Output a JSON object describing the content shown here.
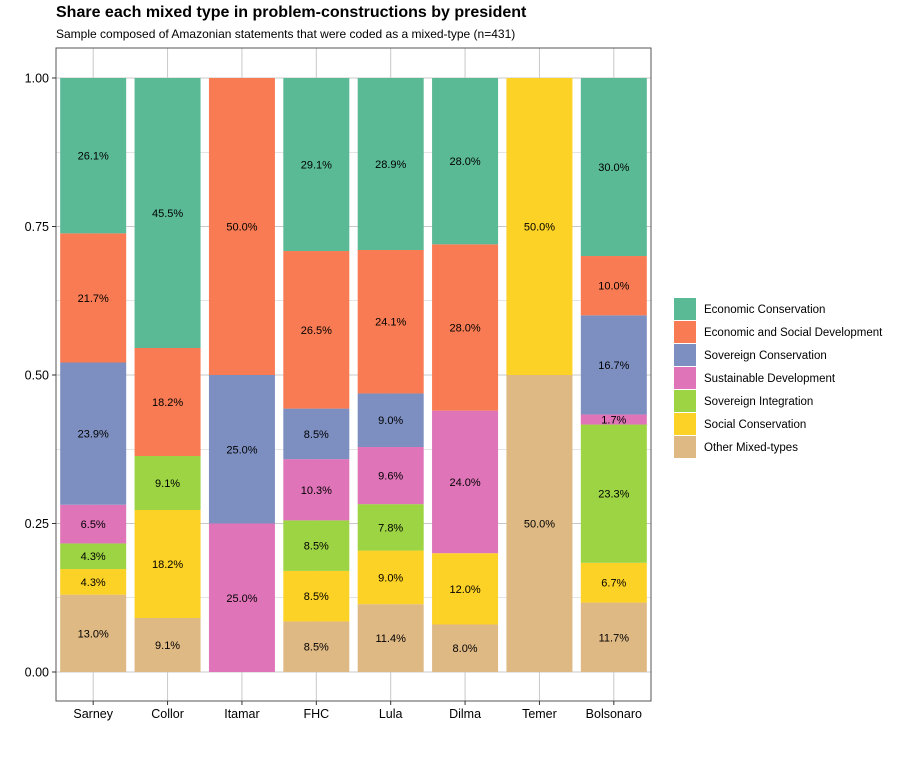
{
  "chart_data": {
    "type": "bar",
    "stacked": true,
    "title": "Share each mixed type in problem-constructions by president",
    "subtitle": "Sample composed of Amazonian statements that were coded as a mixed-type (n=431)",
    "xlabel": "",
    "ylabel": "",
    "ylim": [
      0,
      1
    ],
    "yticks": [
      "0.00",
      "0.25",
      "0.50",
      "0.75",
      "1.00"
    ],
    "grid": true,
    "legend_position": "right",
    "categories": [
      "Sarney",
      "Collor",
      "Itamar",
      "FHC",
      "Lula",
      "Dilma",
      "Temer",
      "Bolsonaro"
    ],
    "series": [
      {
        "name": "Economic Conservation",
        "color": "#5ABA96",
        "values": [
          0.261,
          0.455,
          0,
          0.291,
          0.289,
          0.28,
          0,
          0.3
        ],
        "labels": [
          "26.1%",
          "45.5%",
          "",
          "29.1%",
          "28.9%",
          "28.0%",
          "",
          "30.0%"
        ]
      },
      {
        "name": "Economic and Social Development",
        "color": "#F97B53",
        "values": [
          0.217,
          0.182,
          0.5,
          0.265,
          0.241,
          0.28,
          0,
          0.1
        ],
        "labels": [
          "21.7%",
          "18.2%",
          "50.0%",
          "26.5%",
          "24.1%",
          "28.0%",
          "",
          "10.0%"
        ]
      },
      {
        "name": "Sovereign Conservation",
        "color": "#7D8FC1",
        "values": [
          0.239,
          0,
          0.25,
          0.085,
          0.09,
          0,
          0,
          0.167
        ],
        "labels": [
          "23.9%",
          "",
          "25.0%",
          "8.5%",
          "9.0%",
          "",
          "",
          "16.7%"
        ]
      },
      {
        "name": "Sustainable Development",
        "color": "#DF74B8",
        "values": [
          0.065,
          0,
          0.25,
          0.103,
          0.096,
          0.24,
          0,
          0.017
        ],
        "labels": [
          "6.5%",
          "",
          "25.0%",
          "10.3%",
          "9.6%",
          "24.0%",
          "",
          "1.7%"
        ]
      },
      {
        "name": "Sovereign Integration",
        "color": "#9DD443",
        "values": [
          0.043,
          0.091,
          0,
          0.085,
          0.078,
          0,
          0,
          0.233
        ],
        "labels": [
          "4.3%",
          "9.1%",
          "",
          "8.5%",
          "7.8%",
          "",
          "",
          "23.3%"
        ]
      },
      {
        "name": "Social Conservation",
        "color": "#FDD226",
        "values": [
          0.043,
          0.182,
          0,
          0.085,
          0.09,
          0.12,
          0.5,
          0.067
        ],
        "labels": [
          "4.3%",
          "18.2%",
          "",
          "8.5%",
          "9.0%",
          "12.0%",
          "50.0%",
          "6.7%"
        ]
      },
      {
        "name": "Other Mixed-types",
        "color": "#DFB984",
        "values": [
          0.13,
          0.091,
          0,
          0.085,
          0.114,
          0.08,
          0.5,
          0.117
        ],
        "labels": [
          "13.0%",
          "9.1%",
          "",
          "8.5%",
          "11.4%",
          "8.0%",
          "50.0%",
          "11.7%"
        ]
      }
    ],
    "colors": {
      "panel_border": "#555555",
      "grid": "#C8C8C8",
      "background": "#ffffff"
    }
  }
}
